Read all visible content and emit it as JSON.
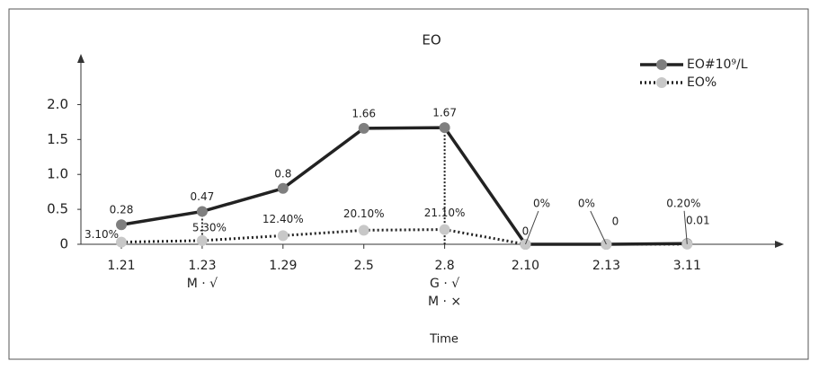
{
  "chart_data": {
    "type": "line",
    "title": "EO",
    "x_label": "Time",
    "categories": [
      "1.21",
      "1.23",
      "1.29",
      "2.5",
      "2.8",
      "2.10",
      "2.13",
      "3.11"
    ],
    "series": [
      {
        "name": "EO#10⁹/L",
        "color": "#222222",
        "marker_color": "#7f7f7f",
        "dash": "solid",
        "values": [
          0.28,
          0.47,
          0.8,
          1.66,
          1.67,
          0,
          0,
          0.01
        ]
      },
      {
        "name": "EO%",
        "color": "#222222",
        "marker_color": "#c8c8c8",
        "dash": "dotted",
        "values": [
          0.031,
          0.053,
          0.124,
          0.201,
          0.211,
          0,
          0,
          0.002
        ],
        "value_labels": [
          "3.10%",
          "5.30%",
          "12.40%",
          "20.10%",
          "21.10%",
          "0%",
          "0%",
          "0.20%"
        ]
      }
    ],
    "annotations": [
      {
        "x": "1.23",
        "text": [
          "M · √"
        ]
      },
      {
        "x": "2.8",
        "text": [
          "G · √",
          "M · ×"
        ]
      }
    ],
    "ylim": [
      0,
      2.7
    ],
    "yticks": [
      0,
      0.5,
      {
        "value": 1,
        "label": "1.0"
      },
      1.5,
      {
        "value": 2,
        "label": "2.0"
      }
    ],
    "legend": "top-right"
  }
}
